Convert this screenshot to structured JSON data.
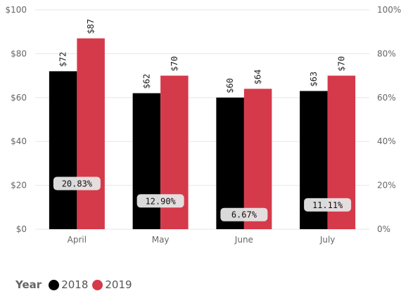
{
  "chart_data": {
    "type": "bar",
    "categories": [
      "April",
      "May",
      "June",
      "July"
    ],
    "series": [
      {
        "name": "2018",
        "values": [
          72,
          62,
          60,
          63
        ],
        "labels": [
          "$72",
          "$62",
          "$60",
          "$63"
        ],
        "color": "#000000"
      },
      {
        "name": "2019",
        "values": [
          87,
          70,
          64,
          70
        ],
        "labels": [
          "$87",
          "$70",
          "$64",
          "$70"
        ],
        "color": "#d53a4b"
      }
    ],
    "growth": {
      "values": [
        20.83,
        12.9,
        6.67,
        11.11
      ],
      "labels": [
        "20.83%",
        "12.90%",
        "6.67%",
        "11.11%"
      ]
    },
    "ylim": [
      0,
      100
    ],
    "yticks": [
      0,
      20,
      40,
      60,
      80,
      100
    ],
    "ytick_labels": [
      "$0",
      "$20",
      "$40",
      "$60",
      "$80",
      "$100"
    ],
    "y2lim": [
      0,
      100
    ],
    "y2ticks": [
      0,
      20,
      40,
      60,
      80,
      100
    ],
    "y2tick_labels": [
      "0%",
      "20%",
      "40%",
      "60%",
      "80%",
      "100%"
    ],
    "grid": true,
    "legend_position": "bottom-left"
  },
  "legend": {
    "title": "Year",
    "items": [
      {
        "label": "2018",
        "color": "#000000"
      },
      {
        "label": "2019",
        "color": "#d53a4b"
      }
    ]
  }
}
